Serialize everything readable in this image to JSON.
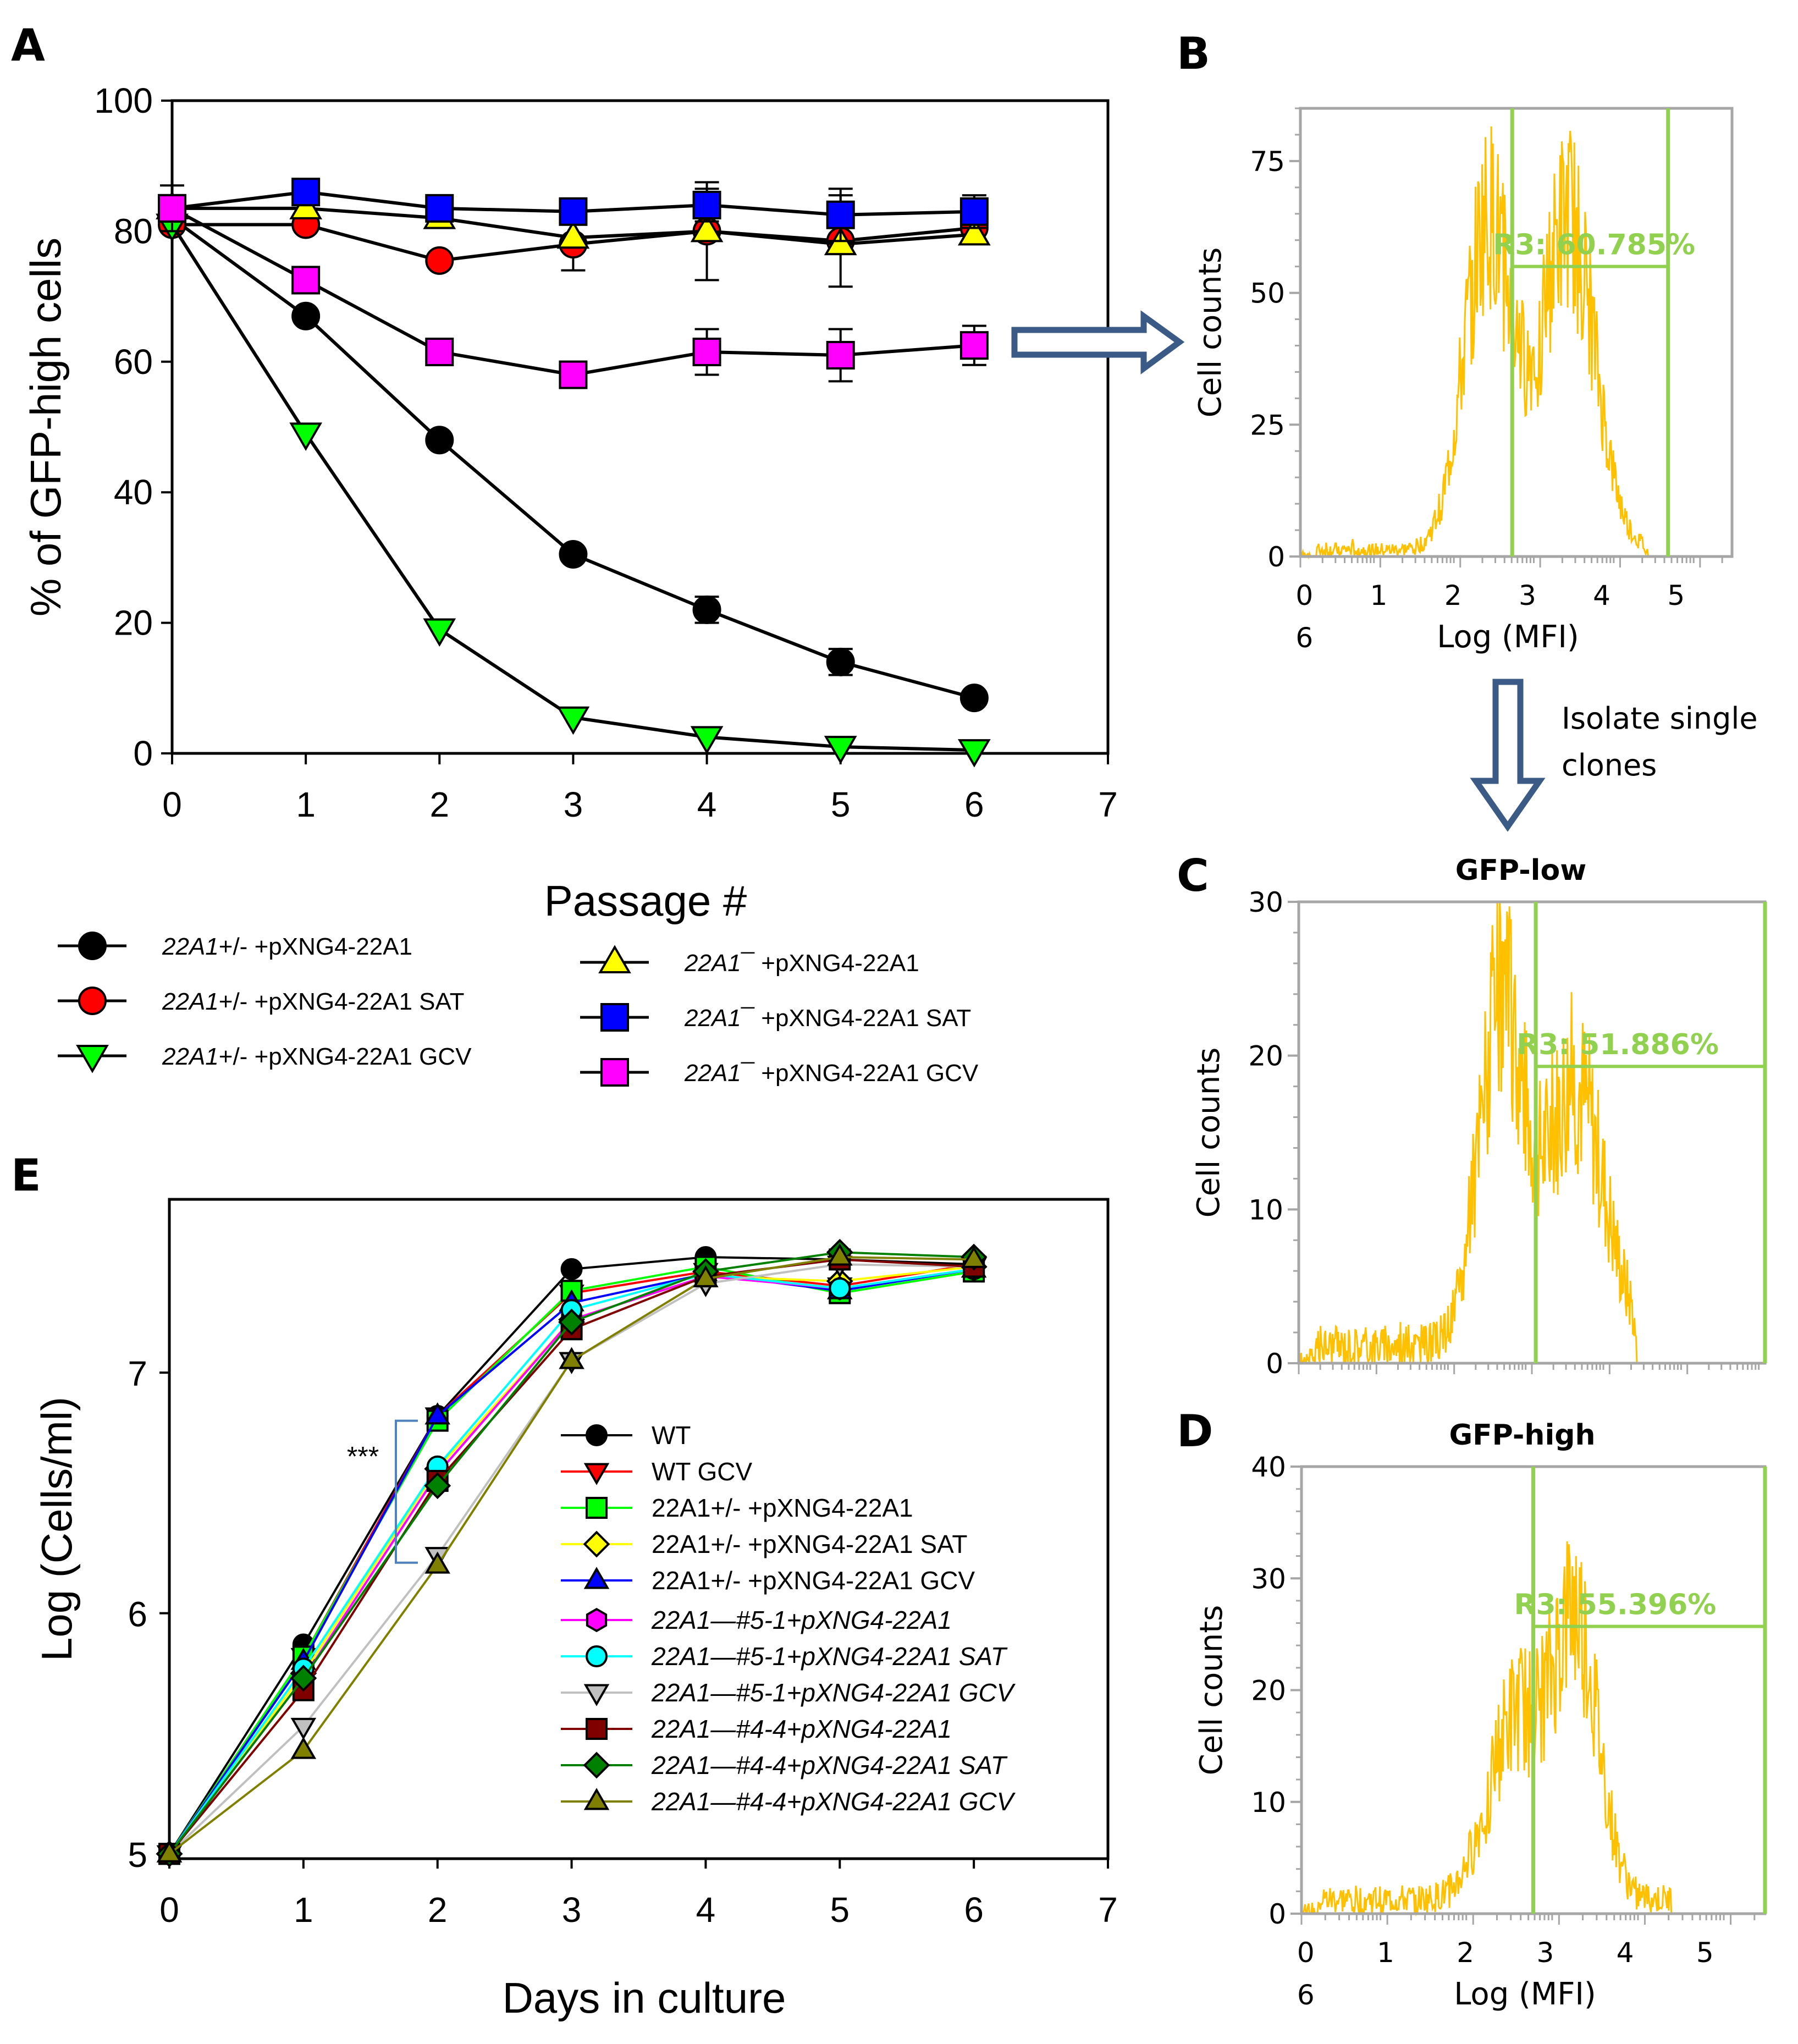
{
  "figure": {
    "panel_labels": [
      "A",
      "B",
      "C",
      "D",
      "E"
    ],
    "arrow_note_line1": "Isolate single",
    "arrow_note_line2": "clones"
  },
  "chart_data": [
    {
      "id": "A",
      "type": "line",
      "title": "",
      "xlabel": "Passage #",
      "ylabel": "% of GFP-high cells",
      "xlim": [
        0,
        7
      ],
      "ylim": [
        0,
        100
      ],
      "xticks": [
        "0",
        "1",
        "2",
        "3",
        "4",
        "5",
        "6",
        "7"
      ],
      "yticks": [
        "0",
        "20",
        "40",
        "60",
        "80",
        "100"
      ],
      "legend_position": "below",
      "x": [
        0,
        1,
        2,
        3,
        4,
        5,
        6
      ],
      "series": [
        {
          "name": "22A1+/- +pXNG4-22A1",
          "italic_prefix": "22A1",
          "rest": "+/- +pXNG4-22A1",
          "marker": "circle",
          "color": "#000000",
          "values": [
            82,
            67,
            48,
            30.5,
            22,
            14,
            8.5
          ],
          "errors": [
            1,
            1,
            1,
            1,
            2,
            2,
            1
          ]
        },
        {
          "name": "22A1+/- +pXNG4-22A1 SAT",
          "italic_prefix": "22A1",
          "rest": "+/- +pXNG4-22A1 SAT",
          "marker": "circle",
          "color": "#ff0000",
          "values": [
            81,
            81,
            75.5,
            78,
            80,
            78.5,
            80.5
          ],
          "errors": [
            1,
            1,
            1,
            4,
            7.5,
            7,
            1
          ]
        },
        {
          "name": "22A1+/- +pXNG4-22A1 GCV",
          "italic_prefix": "22A1",
          "rest": "+/- +pXNG4-22A1 GCV",
          "marker": "triangle-down",
          "color": "#00ff00",
          "values": [
            81,
            49,
            19,
            5.5,
            2.5,
            1,
            0.5
          ],
          "errors": [
            1,
            1,
            1,
            1,
            1,
            1,
            1
          ]
        },
        {
          "name": "22A1— +pXNG4-22A1",
          "italic_prefix": "22A1¯",
          "rest": " +pXNG4-22A1",
          "marker": "triangle-up",
          "color": "#ffff00",
          "values": [
            83.5,
            83.5,
            82,
            79,
            80,
            78,
            79.5
          ],
          "errors": [
            1,
            1,
            1,
            1,
            1,
            1,
            1
          ]
        },
        {
          "name": "22A1— +pXNG4-22A1 SAT",
          "italic_prefix": "22A1¯",
          "rest": " +pXNG4-22A1 SAT",
          "marker": "square",
          "color": "#0000ff",
          "values": [
            83.5,
            86,
            83.5,
            83,
            84,
            82.5,
            83
          ],
          "errors": [
            3.5,
            1,
            1,
            1,
            2.5,
            4,
            2.5
          ]
        },
        {
          "name": "22A1— +pXNG4-22A1 GCV",
          "italic_prefix": "22A1¯",
          "rest": " +pXNG4-22A1 GCV",
          "marker": "square",
          "color": "#ff00ff",
          "values": [
            83.5,
            72.5,
            61.5,
            58,
            61.5,
            61,
            62.5
          ],
          "errors": [
            1,
            2,
            1,
            1,
            3.5,
            4,
            3
          ]
        }
      ]
    },
    {
      "id": "B",
      "type": "histogram",
      "title": "",
      "xlabel": "Log (MFI)",
      "ylabel": "Cell counts",
      "xlim": [
        0,
        5.4
      ],
      "ylim": [
        0,
        85
      ],
      "xticks": [
        "0",
        "1",
        "2",
        "3",
        "4",
        "5"
      ],
      "x_extra_label": "6",
      "yticks": [
        "0",
        "25",
        "50",
        "75"
      ],
      "gate": {
        "label": "R3: 60.785%",
        "from": 2.65,
        "to": 4.6,
        "level": 55
      },
      "peaks": [
        {
          "center": 2.35,
          "height": 62,
          "width": 0.3
        },
        {
          "center": 3.35,
          "height": 62,
          "width": 0.33
        }
      ],
      "max_peak": 84
    },
    {
      "id": "C",
      "type": "histogram",
      "title": "GFP-low",
      "xlabel": "",
      "ylabel": "Cell counts",
      "xlim": [
        0,
        6
      ],
      "ylim": [
        0,
        30
      ],
      "xticks": [],
      "yticks": [
        "0",
        "10",
        "20",
        "30"
      ],
      "gate": {
        "label": "R3: 51.886%",
        "from": 3.05,
        "to": 6,
        "level": 19.3
      },
      "peaks": [
        {
          "center": 2.6,
          "height": 22,
          "width": 0.28
        },
        {
          "center": 3.55,
          "height": 17,
          "width": 0.38
        }
      ],
      "max_peak": 30
    },
    {
      "id": "D",
      "type": "histogram",
      "title": "GFP-high",
      "xlabel": "Log (MFI)",
      "ylabel": "Cell counts",
      "xlim": [
        0,
        5.4
      ],
      "ylim": [
        0,
        40
      ],
      "xticks": [
        "0",
        "1",
        "2",
        "3",
        "4",
        "5"
      ],
      "x_extra_label": "6",
      "yticks": [
        "0",
        "10",
        "20",
        "30",
        "40"
      ],
      "gate": {
        "label": "R3: 55.396%",
        "from": 2.7,
        "to": 5.4,
        "level": 25.7
      },
      "peaks": [
        {
          "center": 2.5,
          "height": 16,
          "width": 0.32
        },
        {
          "center": 3.2,
          "height": 24,
          "width": 0.26
        }
      ],
      "max_peak": 40
    },
    {
      "id": "E",
      "type": "line",
      "title": "",
      "xlabel": "Days in culture",
      "ylabel": "Log (Cells/ml)",
      "xlim": [
        0,
        7
      ],
      "ylim": [
        4.98,
        7.72
      ],
      "xticks": [
        "0",
        "1",
        "2",
        "3",
        "4",
        "5",
        "6",
        "7"
      ],
      "yticks": [
        "5",
        "6",
        "7"
      ],
      "legend_position": "lower-right inside",
      "annotation": "***",
      "x": [
        0,
        1,
        2,
        3,
        4,
        5,
        6
      ],
      "series": [
        {
          "name": "WT",
          "italic": false,
          "marker": "circle",
          "color": "#000000",
          "values": [
            5.0,
            5.87,
            6.82,
            7.43,
            7.48,
            7.47,
            7.45
          ]
        },
        {
          "name": "WT GCV",
          "italic": false,
          "marker": "triangle-down",
          "color": "#ff0000",
          "values": [
            5.0,
            5.82,
            6.82,
            7.33,
            7.42,
            7.36,
            7.45
          ]
        },
        {
          "name": "22A1+/- +pXNG4-22A1",
          "italic": false,
          "marker": "square",
          "color": "#00ff00",
          "values": [
            5.0,
            5.82,
            6.8,
            7.34,
            7.44,
            7.33,
            7.42
          ]
        },
        {
          "name": "22A1+/- +pXNG4-22A1 SAT",
          "italic": false,
          "marker": "diamond",
          "color": "#ffff00",
          "values": [
            5.0,
            5.75,
            6.6,
            7.22,
            7.4,
            7.38,
            7.44
          ]
        },
        {
          "name": "22A1+/- +pXNG4-22A1 GCV",
          "italic": false,
          "marker": "triangle-up",
          "color": "#0000ff",
          "values": [
            5.0,
            5.8,
            6.82,
            7.29,
            7.41,
            7.34,
            7.43
          ]
        },
        {
          "name": "22A1—#5-1+pXNG4-22A1",
          "italic": true,
          "marker": "hexagon",
          "color": "#ff00ff",
          "values": [
            5.0,
            5.73,
            6.58,
            7.22,
            7.4,
            7.35,
            7.43
          ]
        },
        {
          "name": "22A1—#5-1+pXNG4-22A1 SAT",
          "italic": true,
          "marker": "circle",
          "color": "#00ffff",
          "values": [
            5.0,
            5.77,
            6.61,
            7.26,
            7.41,
            7.35,
            7.43
          ]
        },
        {
          "name": "22A1—#5-1+pXNG4-22A1 GCV",
          "italic": true,
          "marker": "triangle-down",
          "color": "#c0c0c0",
          "values": [
            5.0,
            5.53,
            6.24,
            7.05,
            7.37,
            7.45,
            7.44
          ]
        },
        {
          "name": "22A1—#4-4+pXNG4-22A1",
          "italic": true,
          "marker": "square",
          "color": "#800000",
          "values": [
            5.0,
            5.68,
            6.55,
            7.18,
            7.4,
            7.47,
            7.44
          ]
        },
        {
          "name": "22A1—#4-4+pXNG4-22A1 SAT",
          "italic": true,
          "marker": "diamond",
          "color": "#008000",
          "values": [
            5.0,
            5.73,
            6.53,
            7.21,
            7.42,
            7.5,
            7.48
          ]
        },
        {
          "name": "22A1—#4-4+pXNG4-22A1 GCV",
          "italic": true,
          "marker": "triangle-up",
          "color": "#808000",
          "values": [
            5.0,
            5.43,
            6.2,
            7.05,
            7.39,
            7.48,
            7.47
          ]
        }
      ]
    }
  ]
}
